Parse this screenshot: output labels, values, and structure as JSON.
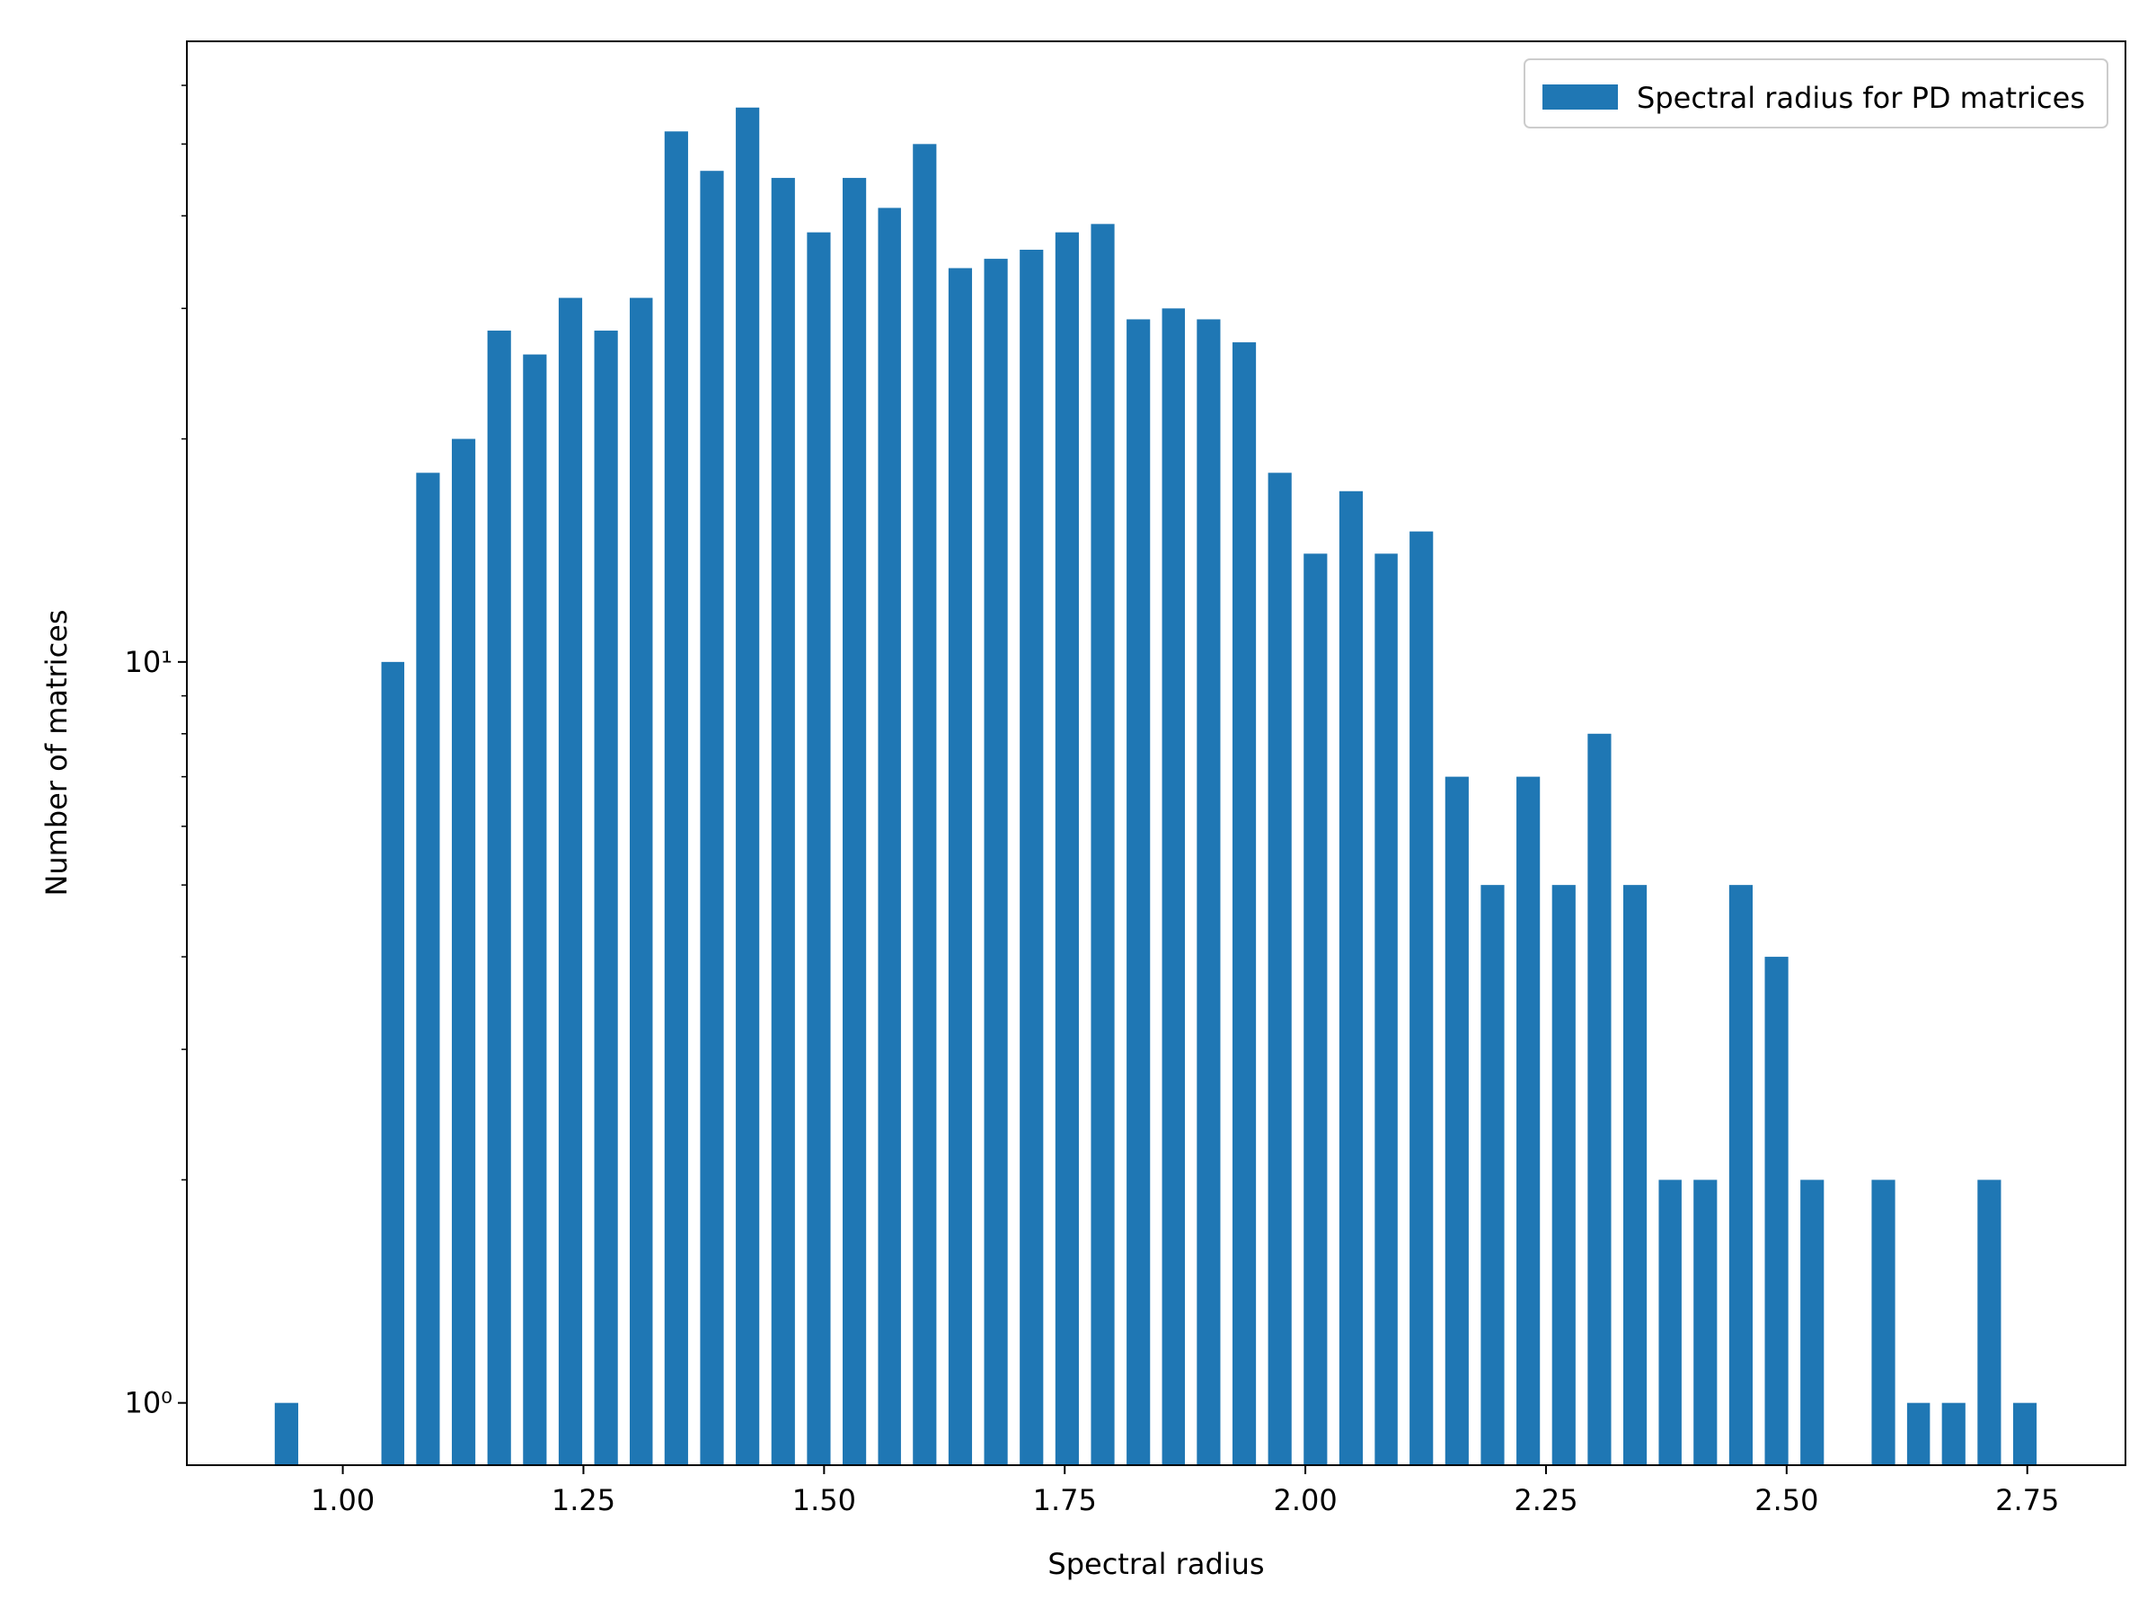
{
  "chart_data": {
    "type": "histogram",
    "xlabel": "Spectral radius",
    "ylabel": "Number of matrices",
    "log_y": true,
    "color": "#1f77b4",
    "legend": "upper right",
    "series": [
      {
        "name": "Spectral radius for PD matrices",
        "color": "#1f77b4",
        "bins": [
          0.923,
          0.96,
          0.997,
          1.034,
          1.07,
          1.107,
          1.144,
          1.181,
          1.218,
          1.255,
          1.292,
          1.328,
          1.365,
          1.402,
          1.439,
          1.476,
          1.513,
          1.55,
          1.586,
          1.623,
          1.66,
          1.697,
          1.734,
          1.771,
          1.808,
          1.845,
          1.881,
          1.918,
          1.955,
          1.992,
          2.029,
          2.066,
          2.102,
          2.139,
          2.176,
          2.213,
          2.25,
          2.287,
          2.324,
          2.361,
          2.397,
          2.434,
          2.471,
          2.508,
          2.545,
          2.582,
          2.619,
          2.655,
          2.692,
          2.729,
          2.766
        ],
        "values": [
          1,
          0,
          0,
          10,
          18,
          20,
          28,
          26,
          31,
          28,
          31,
          52,
          46,
          56,
          45,
          38,
          45,
          41,
          50,
          34,
          35,
          36,
          38,
          39,
          29,
          30,
          29,
          27,
          18,
          14,
          17,
          14,
          15,
          7,
          5,
          7,
          5,
          8,
          5,
          2,
          2,
          5,
          4,
          2,
          0,
          2,
          1,
          1,
          2,
          1
        ]
      }
    ],
    "xlim": [
      0.838,
      2.852
    ],
    "xticks": [
      {
        "value": 1.0,
        "label": "1.00"
      },
      1.25,
      {
        "value": 1.5,
        "label": "1.50"
      },
      1.75,
      {
        "value": 2.0,
        "label": "2.00"
      },
      2.25,
      {
        "value": 2.5,
        "label": "2.50"
      },
      2.75
    ],
    "ylim": [
      0.824,
      68.8
    ],
    "yticks": [
      {
        "value": 1,
        "label": "10⁰"
      },
      {
        "value": 10,
        "label": "10¹"
      }
    ],
    "y_minor_ticks": [
      2,
      3,
      4,
      5,
      6,
      7,
      8,
      9,
      20,
      30,
      40,
      50,
      60
    ]
  }
}
